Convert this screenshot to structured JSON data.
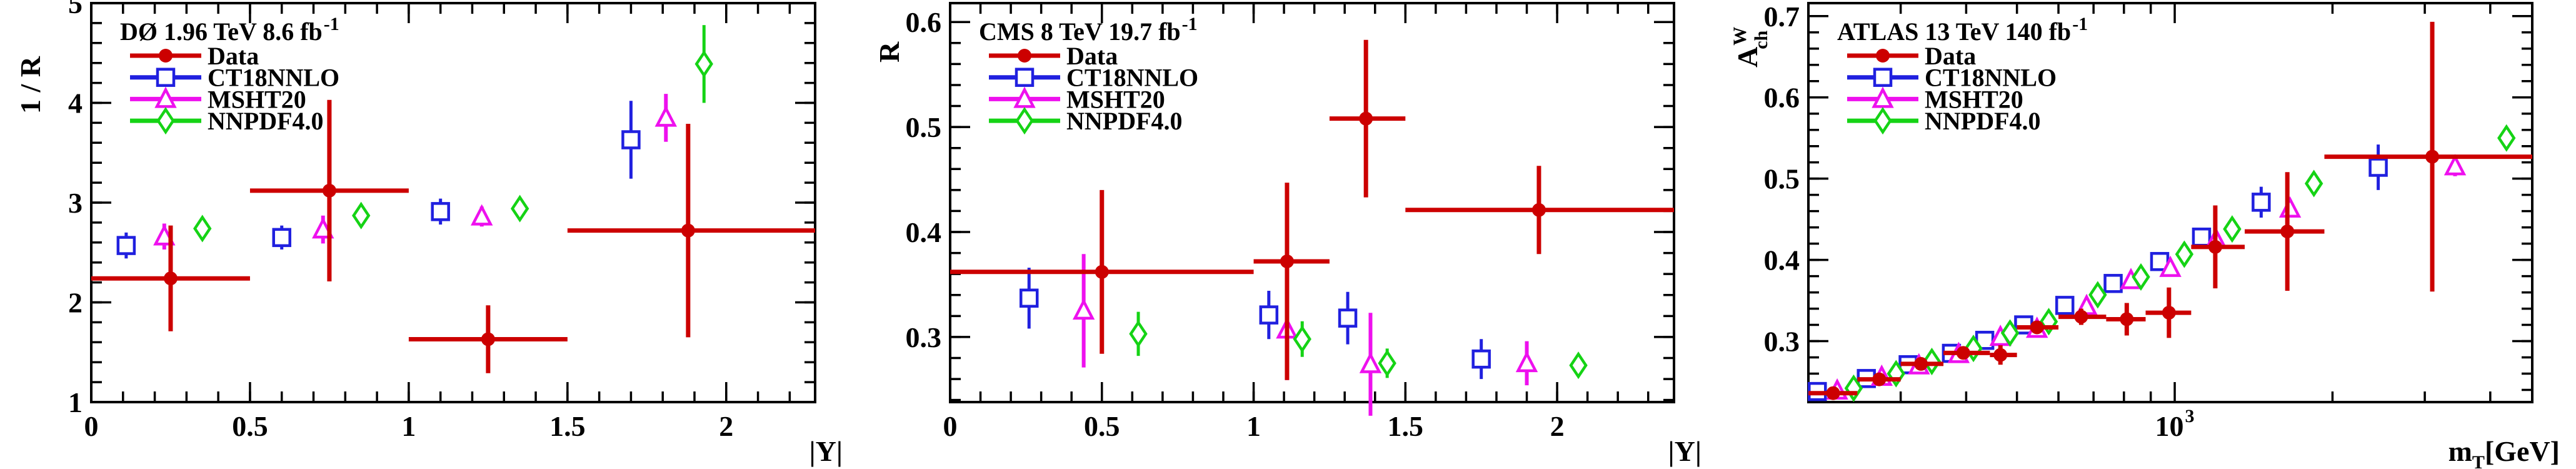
{
  "page": {
    "background": "#ffffff",
    "text_color": "#000000"
  },
  "chart_data": [
    {
      "type": "scatter",
      "panel_id": "do",
      "title": {
        "text": "DØ 1.96 TeV 8.6 fb",
        "sup": "-1"
      },
      "xlabel": {
        "main": "|Y|"
      },
      "ylabel": {
        "text": "1 / R"
      },
      "xscale": "linear",
      "xlim": [
        0,
        2.28
      ],
      "ylim": [
        1,
        5
      ],
      "grid": false,
      "legend_position": "top-left",
      "x_major_ticks": [
        {
          "value": 0,
          "label": "0"
        },
        {
          "value": 0.5,
          "label": "0.5"
        },
        {
          "value": 1,
          "label": "1"
        },
        {
          "value": 1.5,
          "label": "1.5"
        },
        {
          "value": 2,
          "label": "2"
        }
      ],
      "y_major_ticks": [
        {
          "value": 1,
          "label": "1"
        },
        {
          "value": 2,
          "label": "2"
        },
        {
          "value": 3,
          "label": "3"
        },
        {
          "value": 4,
          "label": "4"
        },
        {
          "value": 5,
          "label": "5"
        }
      ],
      "x_minor_step": 0.1,
      "y_minor_step": 0.2,
      "series": [
        {
          "name": "Data",
          "color": "#cc0000",
          "marker": "circle-filled",
          "line_width": 7,
          "points": [
            {
              "x": 0.25,
              "y": 2.24,
              "ey": 0.53,
              "xlo": 0,
              "xhi": 0.5
            },
            {
              "x": 0.75,
              "y": 3.12,
              "ey": 0.91,
              "xlo": 0.5,
              "xhi": 1.0
            },
            {
              "x": 1.25,
              "y": 1.63,
              "ey": 0.34,
              "xlo": 1.0,
              "xhi": 1.5
            },
            {
              "x": 1.88,
              "y": 2.72,
              "ey": 1.07,
              "xlo": 1.5,
              "xhi": 2.28
            }
          ]
        },
        {
          "name": "CT18NNLO",
          "color": "#2020df",
          "marker": "square-open",
          "line_width": 5,
          "points": [
            {
              "x": 0.11,
              "y": 2.57,
              "ey": 0.13
            },
            {
              "x": 0.6,
              "y": 2.65,
              "ey": 0.12
            },
            {
              "x": 1.1,
              "y": 2.91,
              "ey": 0.13
            },
            {
              "x": 1.7,
              "y": 3.63,
              "ey": 0.39
            }
          ]
        },
        {
          "name": "MSHT20",
          "color": "#ee10ee",
          "marker": "triangle-open",
          "line_width": 6,
          "points": [
            {
              "x": 0.23,
              "y": 2.66,
              "ey": 0.13
            },
            {
              "x": 0.73,
              "y": 2.73,
              "ey": 0.14
            },
            {
              "x": 1.23,
              "y": 2.86,
              "ey": 0.1
            },
            {
              "x": 1.81,
              "y": 3.85,
              "ey": 0.24
            }
          ]
        },
        {
          "name": "NNPDF4.0",
          "color": "#15d315",
          "marker": "diamond-open",
          "line_width": 5,
          "points": [
            {
              "x": 0.35,
              "y": 2.74,
              "ey": 0.06
            },
            {
              "x": 0.85,
              "y": 2.87,
              "ey": 0.06
            },
            {
              "x": 1.35,
              "y": 2.94,
              "ey": 0.05
            },
            {
              "x": 1.93,
              "y": 4.39,
              "ey": 0.39
            }
          ]
        }
      ]
    },
    {
      "type": "scatter",
      "panel_id": "cms",
      "title": {
        "text": "CMS 8 TeV 19.7 fb",
        "sup": "-1"
      },
      "xlabel": {
        "main": "|Y|"
      },
      "ylabel": {
        "text": "R"
      },
      "xscale": "linear",
      "xlim": [
        0,
        2.385
      ],
      "ylim": [
        0.238,
        0.618
      ],
      "grid": false,
      "legend_position": "top-left",
      "x_major_ticks": [
        {
          "value": 0,
          "label": "0"
        },
        {
          "value": 0.5,
          "label": "0.5"
        },
        {
          "value": 1,
          "label": "1"
        },
        {
          "value": 1.5,
          "label": "1.5"
        },
        {
          "value": 2,
          "label": "2"
        }
      ],
      "y_major_ticks": [
        {
          "value": 0.3,
          "label": "0.3"
        },
        {
          "value": 0.4,
          "label": "0.4"
        },
        {
          "value": 0.5,
          "label": "0.5"
        },
        {
          "value": 0.6,
          "label": "0.6"
        }
      ],
      "x_minor_step": 0.1,
      "y_minor_step": 0.02,
      "series": [
        {
          "name": "Data",
          "color": "#cc0000",
          "marker": "circle-filled",
          "line_width": 7,
          "points": [
            {
              "x": 0.5,
              "y": 0.362,
              "ey": 0.078,
              "xlo": 0,
              "xhi": 1.0
            },
            {
              "x": 1.11,
              "y": 0.372,
              "eyh": 0.075,
              "eyl": 0.113,
              "xlo": 1.0,
              "xhi": 1.25
            },
            {
              "x": 1.37,
              "y": 0.508,
              "ey": 0.075,
              "xlo": 1.25,
              "xhi": 1.5
            },
            {
              "x": 1.94,
              "y": 0.421,
              "ey": 0.042,
              "xlo": 1.5,
              "xhi": 2.385
            }
          ]
        },
        {
          "name": "CT18NNLO",
          "color": "#2020df",
          "marker": "square-open",
          "line_width": 5,
          "points": [
            {
              "x": 0.26,
              "y": 0.337,
              "ey": 0.029
            },
            {
              "x": 1.05,
              "y": 0.321,
              "ey": 0.023
            },
            {
              "x": 1.31,
              "y": 0.318,
              "ey": 0.025
            },
            {
              "x": 1.75,
              "y": 0.279,
              "ey": 0.019
            }
          ]
        },
        {
          "name": "MSHT20",
          "color": "#ee10ee",
          "marker": "triangle-open",
          "line_width": 6,
          "points": [
            {
              "x": 0.44,
              "y": 0.325,
              "ey": 0.054
            },
            {
              "x": 1.11,
              "y": 0.307,
              "ey": 0.048
            },
            {
              "x": 1.385,
              "y": 0.274,
              "ey": 0.049
            },
            {
              "x": 1.9,
              "y": 0.275,
              "ey": 0.021
            }
          ]
        },
        {
          "name": "NNPDF4.0",
          "color": "#15d315",
          "marker": "diamond-open",
          "line_width": 5,
          "points": [
            {
              "x": 0.62,
              "y": 0.303,
              "ey": 0.021
            },
            {
              "x": 1.16,
              "y": 0.298,
              "ey": 0.017
            },
            {
              "x": 1.44,
              "y": 0.275,
              "ey": 0.014
            },
            {
              "x": 2.07,
              "y": 0.273,
              "ey": 0.007
            }
          ]
        }
      ]
    },
    {
      "type": "scatter",
      "panel_id": "atlas",
      "title": {
        "text": "ATLAS 13 TeV 140 fb",
        "sup": "-1"
      },
      "xlabel": {
        "main": "m",
        "sub": "T",
        "tail": "[GeV]"
      },
      "ylabel": {
        "main": "A",
        "sup": "W",
        "sub": "ch"
      },
      "xscale": "log",
      "xlim": [
        200,
        4810
      ],
      "ylim": [
        0.225,
        0.716
      ],
      "grid": false,
      "legend_position": "top-left",
      "x_major_ticks": [
        {
          "value": 1000,
          "label": "10",
          "label_sup": "3"
        }
      ],
      "x_minor_ticks": [
        200,
        300,
        400,
        500,
        600,
        700,
        800,
        900,
        2000,
        3000,
        4000
      ],
      "y_major_ticks": [
        {
          "value": 0.3,
          "label": "0.3"
        },
        {
          "value": 0.4,
          "label": "0.4"
        },
        {
          "value": 0.5,
          "label": "0.5"
        },
        {
          "value": 0.6,
          "label": "0.6"
        },
        {
          "value": 0.7,
          "label": "0.7"
        }
      ],
      "y_minor_step": 0.02,
      "series": [
        {
          "name": "Data",
          "color": "#cc0000",
          "marker": "circle-filled",
          "line_width": 7,
          "points": [
            {
              "x": 223,
              "y": 0.236,
              "ey": 0.004,
              "xlo": 200,
              "xhi": 248
            },
            {
              "x": 273,
              "y": 0.253,
              "ey": 0.004,
              "xlo": 248,
              "xhi": 300
            },
            {
              "x": 328,
              "y": 0.272,
              "ey": 0.005,
              "xlo": 300,
              "xhi": 362
            },
            {
              "x": 395,
              "y": 0.2855,
              "ey": 0.005,
              "xlo": 362,
              "xhi": 444
            },
            {
              "x": 465,
              "y": 0.283,
              "ey": 0.012,
              "xlo": 444,
              "xhi": 500
            },
            {
              "x": 546,
              "y": 0.317,
              "ey": 0.008,
              "xlo": 500,
              "xhi": 600
            },
            {
              "x": 663,
              "y": 0.33,
              "ey": 0.01,
              "xlo": 600,
              "xhi": 740
            },
            {
              "x": 810,
              "y": 0.327,
              "ey": 0.02,
              "xlo": 740,
              "xhi": 880
            },
            {
              "x": 975,
              "y": 0.335,
              "ey": 0.031,
              "xlo": 880,
              "xhi": 1075
            },
            {
              "x": 1195,
              "y": 0.416,
              "ey": 0.051,
              "xlo": 1075,
              "xhi": 1360
            },
            {
              "x": 1640,
              "y": 0.435,
              "ey": 0.073,
              "xlo": 1360,
              "xhi": 1930
            },
            {
              "x": 3100,
              "y": 0.527,
              "ey": 0.166,
              "xlo": 1930,
              "xhi": 4810
            }
          ]
        },
        {
          "name": "CT18NNLO",
          "color": "#2020df",
          "marker": "square-open",
          "line_width": 5,
          "points": [
            {
              "x": 208,
              "y": 0.238,
              "ey": 0.005
            },
            {
              "x": 258,
              "y": 0.254,
              "ey": 0.005
            },
            {
              "x": 310,
              "y": 0.271,
              "ey": 0.005
            },
            {
              "x": 375,
              "y": 0.285,
              "ey": 0.005
            },
            {
              "x": 434,
              "y": 0.301,
              "ey": 0.006
            },
            {
              "x": 515,
              "y": 0.32,
              "ey": 0.006
            },
            {
              "x": 617,
              "y": 0.344,
              "ey": 0.007
            },
            {
              "x": 763,
              "y": 0.371,
              "ey": 0.008
            },
            {
              "x": 936,
              "y": 0.398,
              "ey": 0.009
            },
            {
              "x": 1125,
              "y": 0.428,
              "ey": 0.011
            },
            {
              "x": 1462,
              "y": 0.471,
              "ey": 0.019
            },
            {
              "x": 2445,
              "y": 0.514,
              "ey": 0.028
            }
          ]
        },
        {
          "name": "MSHT20",
          "color": "#ee10ee",
          "marker": "triangle-open",
          "line_width": 6,
          "points": [
            {
              "x": 227,
              "y": 0.239,
              "ey": 0.004
            },
            {
              "x": 276,
              "y": 0.256,
              "ey": 0.004
            },
            {
              "x": 325,
              "y": 0.27,
              "ey": 0.004
            },
            {
              "x": 387,
              "y": 0.284,
              "ey": 0.004
            },
            {
              "x": 465,
              "y": 0.305,
              "ey": 0.005
            },
            {
              "x": 546,
              "y": 0.315,
              "ey": 0.005
            },
            {
              "x": 679,
              "y": 0.343,
              "ey": 0.006
            },
            {
              "x": 825,
              "y": 0.375,
              "ey": 0.006
            },
            {
              "x": 981,
              "y": 0.39,
              "ey": 0.007
            },
            {
              "x": 1199,
              "y": 0.425,
              "ey": 0.008
            },
            {
              "x": 1660,
              "y": 0.463,
              "ey": 0.01
            },
            {
              "x": 3427,
              "y": 0.515,
              "ey": 0.012
            }
          ]
        },
        {
          "name": "NNPDF4.0",
          "color": "#15d315",
          "marker": "diamond-open",
          "line_width": 5,
          "points": [
            {
              "x": 244,
              "y": 0.242,
              "ey": 0.003
            },
            {
              "x": 294,
              "y": 0.26,
              "ey": 0.003
            },
            {
              "x": 344,
              "y": 0.275,
              "ey": 0.003
            },
            {
              "x": 413,
              "y": 0.291,
              "ey": 0.003
            },
            {
              "x": 485,
              "y": 0.31,
              "ey": 0.004
            },
            {
              "x": 575,
              "y": 0.324,
              "ey": 0.004
            },
            {
              "x": 713,
              "y": 0.357,
              "ey": 0.004
            },
            {
              "x": 862,
              "y": 0.379,
              "ey": 0.005
            },
            {
              "x": 1043,
              "y": 0.407,
              "ey": 0.005
            },
            {
              "x": 1287,
              "y": 0.438,
              "ey": 0.006
            },
            {
              "x": 1843,
              "y": 0.494,
              "ey": 0.007
            },
            {
              "x": 4295,
              "y": 0.55,
              "ey": 0.011
            }
          ]
        }
      ]
    }
  ]
}
